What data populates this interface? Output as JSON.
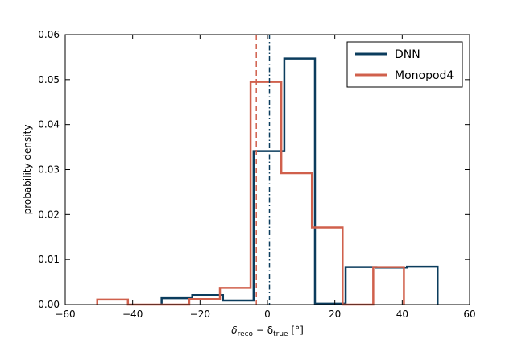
{
  "chart_data": {
    "type": "histogram-step",
    "xlim": [
      -60,
      60
    ],
    "ylim": [
      0,
      0.06
    ],
    "x_ticks": [
      -60,
      -40,
      -20,
      0,
      20,
      40,
      60
    ],
    "x_tick_labels": [
      "−60",
      "−40",
      "−20",
      "0",
      "20",
      "40",
      "60"
    ],
    "y_ticks": [
      0,
      0.01,
      0.02,
      0.03,
      0.04,
      0.05,
      0.06
    ],
    "y_tick_labels": [
      "0.00",
      "0.01",
      "0.02",
      "0.03",
      "0.04",
      "0.05",
      "0.06"
    ],
    "ylabel": "probability density",
    "xlabel": {
      "prefix": "δ",
      "sub1": "reco",
      "minus": " − δ",
      "sub2": "true",
      "unit": "  [°]"
    },
    "grid": false,
    "legend_position": "top-right",
    "series": [
      {
        "name": "DNN",
        "color": "#0b3c5d",
        "edges": [
          -31.4,
          -22.3,
          -13.2,
          -4.1,
          5.0,
          14.1,
          23.2,
          32.3,
          41.4,
          50.5
        ],
        "values": [
          0.0014,
          0.0021,
          0.0009,
          0.0341,
          0.0547,
          0.0002,
          0.0083,
          0.0082,
          0.0084
        ],
        "median": 0.6,
        "median_style": "dashdot"
      },
      {
        "name": "Monopod4",
        "color": "#d0604c",
        "edges": [
          -50.5,
          -41.4,
          -32.3,
          -23.2,
          -14.1,
          -5.0,
          4.1,
          13.2,
          22.3,
          31.4,
          40.5
        ],
        "values": [
          0.0011,
          0.0,
          0.0,
          0.0012,
          0.0037,
          0.0495,
          0.0292,
          0.0171,
          0.0,
          0.0083
        ],
        "median": -3.3,
        "median_style": "dashed"
      }
    ]
  }
}
